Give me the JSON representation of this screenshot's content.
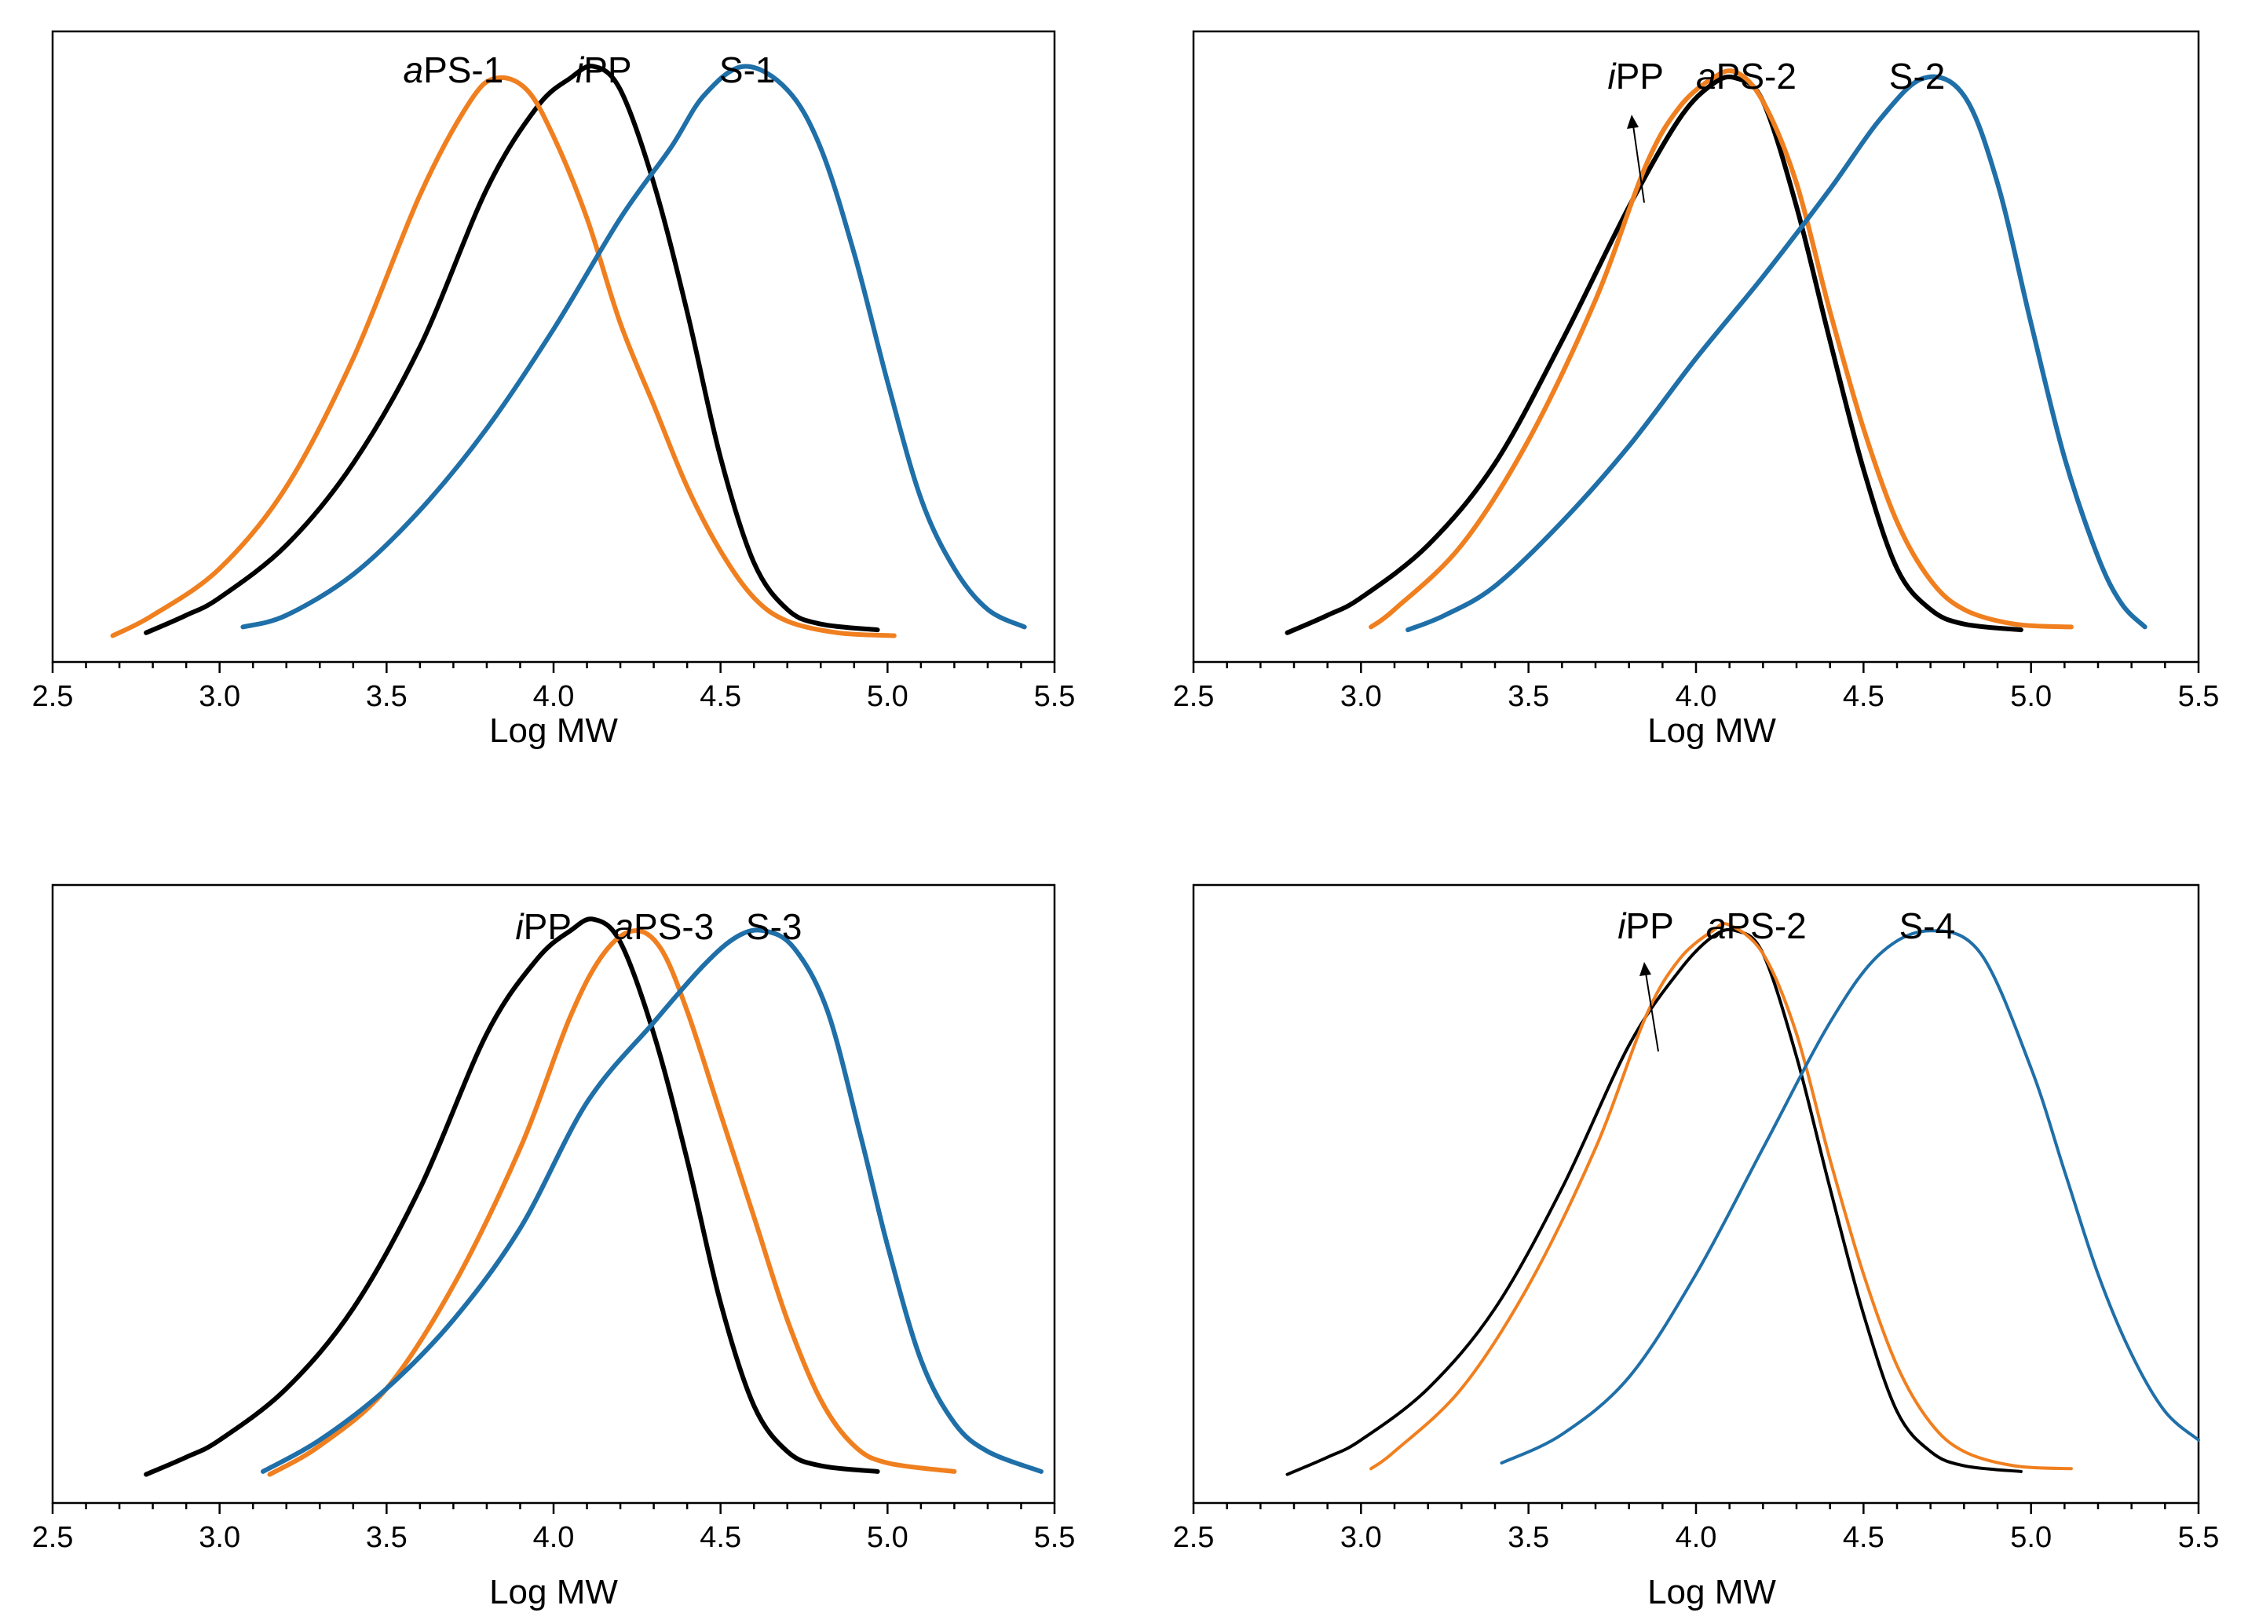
{
  "colors": {
    "iPP": "#000000",
    "aPS": "#f07f1f",
    "S": "#1f6fa8"
  },
  "chart_data": [
    {
      "type": "line",
      "xlabel": "Log MW",
      "xlim": [
        2.5,
        5.5
      ],
      "xticks": [
        "2.5",
        "3.0",
        "3.5",
        "4.0",
        "4.5",
        "5.0",
        "5.5"
      ],
      "ylim": [
        0,
        1.08
      ],
      "series": [
        {
          "name": "iPP",
          "label_prefix": "i",
          "label_rest": "PP",
          "color_key": "iPP",
          "start": 2.78,
          "end": 4.97,
          "points": [
            [
              2.78,
              0.05
            ],
            [
              2.9,
              0.08
            ],
            [
              3.0,
              0.11
            ],
            [
              3.2,
              0.2
            ],
            [
              3.4,
              0.34
            ],
            [
              3.6,
              0.54
            ],
            [
              3.8,
              0.81
            ],
            [
              3.95,
              0.95
            ],
            [
              4.05,
              1.0
            ],
            [
              4.12,
              1.02
            ],
            [
              4.2,
              0.98
            ],
            [
              4.3,
              0.82
            ],
            [
              4.4,
              0.6
            ],
            [
              4.5,
              0.35
            ],
            [
              4.6,
              0.17
            ],
            [
              4.7,
              0.09
            ],
            [
              4.8,
              0.065
            ],
            [
              4.97,
              0.055
            ]
          ]
        },
        {
          "name": "aPS-1",
          "label_prefix": "a",
          "label_rest": "PS-1",
          "color_key": "aPS",
          "start": 2.68,
          "end": 5.02,
          "points": [
            [
              2.68,
              0.045
            ],
            [
              2.8,
              0.08
            ],
            [
              3.0,
              0.16
            ],
            [
              3.2,
              0.3
            ],
            [
              3.4,
              0.52
            ],
            [
              3.6,
              0.8
            ],
            [
              3.75,
              0.96
            ],
            [
              3.83,
              1.0
            ],
            [
              3.92,
              0.98
            ],
            [
              4.0,
              0.9
            ],
            [
              4.1,
              0.76
            ],
            [
              4.2,
              0.58
            ],
            [
              4.3,
              0.44
            ],
            [
              4.4,
              0.3
            ],
            [
              4.5,
              0.19
            ],
            [
              4.6,
              0.11
            ],
            [
              4.7,
              0.07
            ],
            [
              4.85,
              0.05
            ],
            [
              5.02,
              0.045
            ]
          ]
        },
        {
          "name": "S-1",
          "label_prefix": "",
          "label_rest": "S-1",
          "color_key": "S",
          "start": 3.07,
          "end": 5.41,
          "points": [
            [
              3.07,
              0.06
            ],
            [
              3.2,
              0.08
            ],
            [
              3.4,
              0.15
            ],
            [
              3.6,
              0.26
            ],
            [
              3.8,
              0.4
            ],
            [
              4.0,
              0.57
            ],
            [
              4.2,
              0.76
            ],
            [
              4.35,
              0.88
            ],
            [
              4.45,
              0.97
            ],
            [
              4.57,
              1.02
            ],
            [
              4.7,
              0.98
            ],
            [
              4.8,
              0.88
            ],
            [
              4.9,
              0.7
            ],
            [
              5.0,
              0.48
            ],
            [
              5.1,
              0.28
            ],
            [
              5.2,
              0.16
            ],
            [
              5.3,
              0.09
            ],
            [
              5.41,
              0.06
            ]
          ]
        }
      ]
    },
    {
      "type": "line",
      "xlabel": "Log MW",
      "xlim": [
        2.5,
        5.5
      ],
      "xticks": [
        "2.5",
        "3.0",
        "3.5",
        "4.0",
        "4.5",
        "5.0",
        "5.5"
      ],
      "ylim": [
        0,
        1.08
      ],
      "series": [
        {
          "name": "iPP",
          "label_prefix": "i",
          "label_rest": "PP",
          "color_key": "iPP",
          "start": 2.78,
          "end": 4.97,
          "points": [
            [
              2.78,
              0.05
            ],
            [
              2.9,
              0.08
            ],
            [
              3.0,
              0.11
            ],
            [
              3.2,
              0.2
            ],
            [
              3.4,
              0.34
            ],
            [
              3.6,
              0.55
            ],
            [
              3.8,
              0.78
            ],
            [
              3.95,
              0.93
            ],
            [
              4.05,
              0.99
            ],
            [
              4.12,
              1.0
            ],
            [
              4.2,
              0.96
            ],
            [
              4.3,
              0.78
            ],
            [
              4.4,
              0.55
            ],
            [
              4.5,
              0.33
            ],
            [
              4.6,
              0.16
            ],
            [
              4.7,
              0.09
            ],
            [
              4.8,
              0.065
            ],
            [
              4.97,
              0.055
            ]
          ]
        },
        {
          "name": "aPS-2",
          "label_prefix": "a",
          "label_rest": "PS-2",
          "color_key": "aPS",
          "start": 3.03,
          "end": 5.12,
          "points": [
            [
              3.03,
              0.06
            ],
            [
              3.1,
              0.09
            ],
            [
              3.3,
              0.2
            ],
            [
              3.5,
              0.38
            ],
            [
              3.7,
              0.62
            ],
            [
              3.85,
              0.85
            ],
            [
              3.95,
              0.95
            ],
            [
              4.05,
              1.0
            ],
            [
              4.12,
              1.01
            ],
            [
              4.2,
              0.96
            ],
            [
              4.3,
              0.82
            ],
            [
              4.4,
              0.6
            ],
            [
              4.5,
              0.4
            ],
            [
              4.6,
              0.24
            ],
            [
              4.7,
              0.14
            ],
            [
              4.8,
              0.09
            ],
            [
              4.95,
              0.065
            ],
            [
              5.12,
              0.06
            ]
          ]
        },
        {
          "name": "S-2",
          "label_prefix": "",
          "label_rest": "S-2",
          "color_key": "S",
          "start": 3.14,
          "end": 5.34,
          "points": [
            [
              3.14,
              0.055
            ],
            [
              3.25,
              0.08
            ],
            [
              3.4,
              0.13
            ],
            [
              3.6,
              0.24
            ],
            [
              3.8,
              0.37
            ],
            [
              4.0,
              0.52
            ],
            [
              4.2,
              0.66
            ],
            [
              4.4,
              0.81
            ],
            [
              4.55,
              0.93
            ],
            [
              4.68,
              1.0
            ],
            [
              4.8,
              0.97
            ],
            [
              4.9,
              0.82
            ],
            [
              5.0,
              0.58
            ],
            [
              5.1,
              0.35
            ],
            [
              5.2,
              0.18
            ],
            [
              5.27,
              0.1
            ],
            [
              5.34,
              0.06
            ]
          ]
        }
      ]
    },
    {
      "type": "line",
      "xlabel": "Log MW",
      "xlim": [
        2.5,
        5.5
      ],
      "xticks": [
        "2.5",
        "3.0",
        "3.5",
        "4.0",
        "4.5",
        "5.0",
        "5.5"
      ],
      "ylim": [
        0,
        1.08
      ],
      "series": [
        {
          "name": "iPP",
          "label_prefix": "i",
          "label_rest": "PP",
          "color_key": "iPP",
          "start": 2.78,
          "end": 4.97,
          "points": [
            [
              2.78,
              0.05
            ],
            [
              2.9,
              0.08
            ],
            [
              3.0,
              0.11
            ],
            [
              3.2,
              0.2
            ],
            [
              3.4,
              0.34
            ],
            [
              3.6,
              0.55
            ],
            [
              3.8,
              0.82
            ],
            [
              3.95,
              0.95
            ],
            [
              4.05,
              1.0
            ],
            [
              4.12,
              1.02
            ],
            [
              4.2,
              0.98
            ],
            [
              4.3,
              0.82
            ],
            [
              4.4,
              0.6
            ],
            [
              4.5,
              0.35
            ],
            [
              4.6,
              0.17
            ],
            [
              4.7,
              0.09
            ],
            [
              4.8,
              0.065
            ],
            [
              4.97,
              0.055
            ]
          ]
        },
        {
          "name": "aPS-3",
          "label_prefix": "a",
          "label_rest": "PS-3",
          "color_key": "aPS",
          "start": 3.15,
          "end": 5.2,
          "points": [
            [
              3.15,
              0.05
            ],
            [
              3.3,
              0.1
            ],
            [
              3.5,
              0.2
            ],
            [
              3.7,
              0.38
            ],
            [
              3.9,
              0.62
            ],
            [
              4.05,
              0.85
            ],
            [
              4.15,
              0.96
            ],
            [
              4.24,
              1.0
            ],
            [
              4.32,
              0.97
            ],
            [
              4.4,
              0.86
            ],
            [
              4.5,
              0.68
            ],
            [
              4.6,
              0.5
            ],
            [
              4.7,
              0.32
            ],
            [
              4.8,
              0.18
            ],
            [
              4.9,
              0.1
            ],
            [
              5.0,
              0.07
            ],
            [
              5.2,
              0.055
            ]
          ]
        },
        {
          "name": "S-3",
          "label_prefix": "",
          "label_rest": "S-3",
          "color_key": "S",
          "start": 3.13,
          "end": 5.46,
          "points": [
            [
              3.13,
              0.055
            ],
            [
              3.3,
              0.11
            ],
            [
              3.5,
              0.2
            ],
            [
              3.7,
              0.32
            ],
            [
              3.9,
              0.48
            ],
            [
              4.1,
              0.7
            ],
            [
              4.3,
              0.84
            ],
            [
              4.45,
              0.94
            ],
            [
              4.55,
              0.99
            ],
            [
              4.63,
              1.0
            ],
            [
              4.72,
              0.97
            ],
            [
              4.82,
              0.86
            ],
            [
              4.92,
              0.64
            ],
            [
              5.0,
              0.45
            ],
            [
              5.1,
              0.25
            ],
            [
              5.2,
              0.14
            ],
            [
              5.3,
              0.09
            ],
            [
              5.46,
              0.055
            ]
          ]
        }
      ]
    },
    {
      "type": "line",
      "xlabel": "Log MW",
      "xlim": [
        2.5,
        5.5
      ],
      "xticks": [
        "2.5",
        "3.0",
        "3.5",
        "4.0",
        "4.5",
        "5.0",
        "5.5"
      ],
      "ylim": [
        0,
        1.08
      ],
      "series": [
        {
          "name": "iPP",
          "label_prefix": "i",
          "label_rest": "PP",
          "color_key": "iPP",
          "start": 2.78,
          "end": 4.97,
          "points": [
            [
              2.78,
              0.05
            ],
            [
              2.9,
              0.08
            ],
            [
              3.0,
              0.11
            ],
            [
              3.2,
              0.2
            ],
            [
              3.4,
              0.34
            ],
            [
              3.6,
              0.55
            ],
            [
              3.8,
              0.8
            ],
            [
              3.95,
              0.93
            ],
            [
              4.05,
              0.99
            ],
            [
              4.12,
              1.0
            ],
            [
              4.2,
              0.96
            ],
            [
              4.3,
              0.78
            ],
            [
              4.4,
              0.55
            ],
            [
              4.5,
              0.33
            ],
            [
              4.6,
              0.16
            ],
            [
              4.7,
              0.09
            ],
            [
              4.8,
              0.065
            ],
            [
              4.97,
              0.055
            ]
          ]
        },
        {
          "name": "aPS-2",
          "label_prefix": "a",
          "label_rest": "PS-2",
          "color_key": "aPS",
          "start": 3.03,
          "end": 5.12,
          "points": [
            [
              3.03,
              0.06
            ],
            [
              3.1,
              0.09
            ],
            [
              3.3,
              0.2
            ],
            [
              3.5,
              0.38
            ],
            [
              3.7,
              0.62
            ],
            [
              3.85,
              0.85
            ],
            [
              3.95,
              0.95
            ],
            [
              4.05,
              1.0
            ],
            [
              4.1,
              1.01
            ],
            [
              4.2,
              0.96
            ],
            [
              4.3,
              0.82
            ],
            [
              4.4,
              0.6
            ],
            [
              4.5,
              0.4
            ],
            [
              4.6,
              0.24
            ],
            [
              4.7,
              0.14
            ],
            [
              4.8,
              0.09
            ],
            [
              4.95,
              0.065
            ],
            [
              5.12,
              0.06
            ]
          ]
        },
        {
          "name": "S-4",
          "label_prefix": "",
          "label_rest": "S-4",
          "color_key": "S",
          "start": 3.42,
          "end": 5.5,
          "points": [
            [
              3.42,
              0.07
            ],
            [
              3.6,
              0.12
            ],
            [
              3.8,
              0.22
            ],
            [
              4.0,
              0.4
            ],
            [
              4.2,
              0.62
            ],
            [
              4.4,
              0.84
            ],
            [
              4.55,
              0.96
            ],
            [
              4.7,
              1.0
            ],
            [
              4.85,
              0.96
            ],
            [
              5.0,
              0.76
            ],
            [
              5.1,
              0.58
            ],
            [
              5.2,
              0.4
            ],
            [
              5.3,
              0.26
            ],
            [
              5.4,
              0.16
            ],
            [
              5.5,
              0.11
            ]
          ]
        }
      ]
    }
  ]
}
